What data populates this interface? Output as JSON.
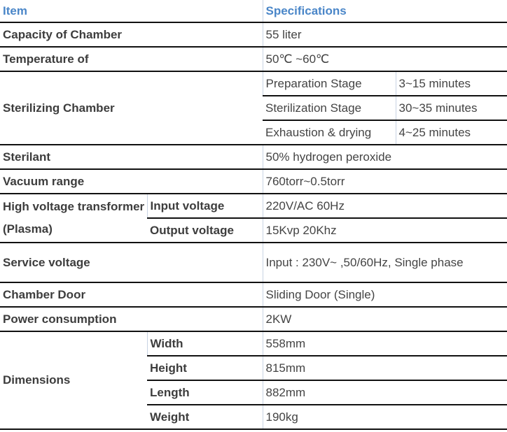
{
  "header": {
    "item": "Item",
    "spec": "Specifications"
  },
  "rows": {
    "capacity": {
      "label": "Capacity of Chamber",
      "value": "55 liter"
    },
    "temperature": {
      "label": "Temperature of",
      "value": "50℃ ~60℃"
    },
    "sterilizing": {
      "label": "Sterilizing Chamber",
      "stages": [
        {
          "name": "Preparation Stage",
          "time": "3~15 minutes"
        },
        {
          "name": "Sterilization Stage",
          "time": "30~35 minutes"
        },
        {
          "name": "Exhaustion & drying",
          "time": "4~25 minutes"
        }
      ]
    },
    "sterilant": {
      "label": "Sterilant",
      "value": "50% hydrogen peroxide"
    },
    "vacuum": {
      "label": "Vacuum range",
      "value": "760torr~0.5torr"
    },
    "hv": {
      "label": "High voltage transformer (Plasma)",
      "sub": [
        {
          "name": "Input voltage",
          "value": "220V/AC 60Hz"
        },
        {
          "name": "Output voltage",
          "value": "15Kvp 20Khz"
        }
      ]
    },
    "service": {
      "label": "Service voltage",
      "value": "Input : 230V~ ,50/60Hz, Single phase"
    },
    "door": {
      "label": "Chamber Door",
      "value": "Sliding Door (Single)"
    },
    "power": {
      "label": "Power consumption",
      "value": "2KW"
    },
    "dimensions": {
      "label": "Dimensions",
      "sub": [
        {
          "name": "Width",
          "value": "558mm"
        },
        {
          "name": "Height",
          "value": "815mm"
        },
        {
          "name": "Length",
          "value": "882mm"
        },
        {
          "name": "Weight",
          "value": "190kg"
        }
      ]
    }
  }
}
